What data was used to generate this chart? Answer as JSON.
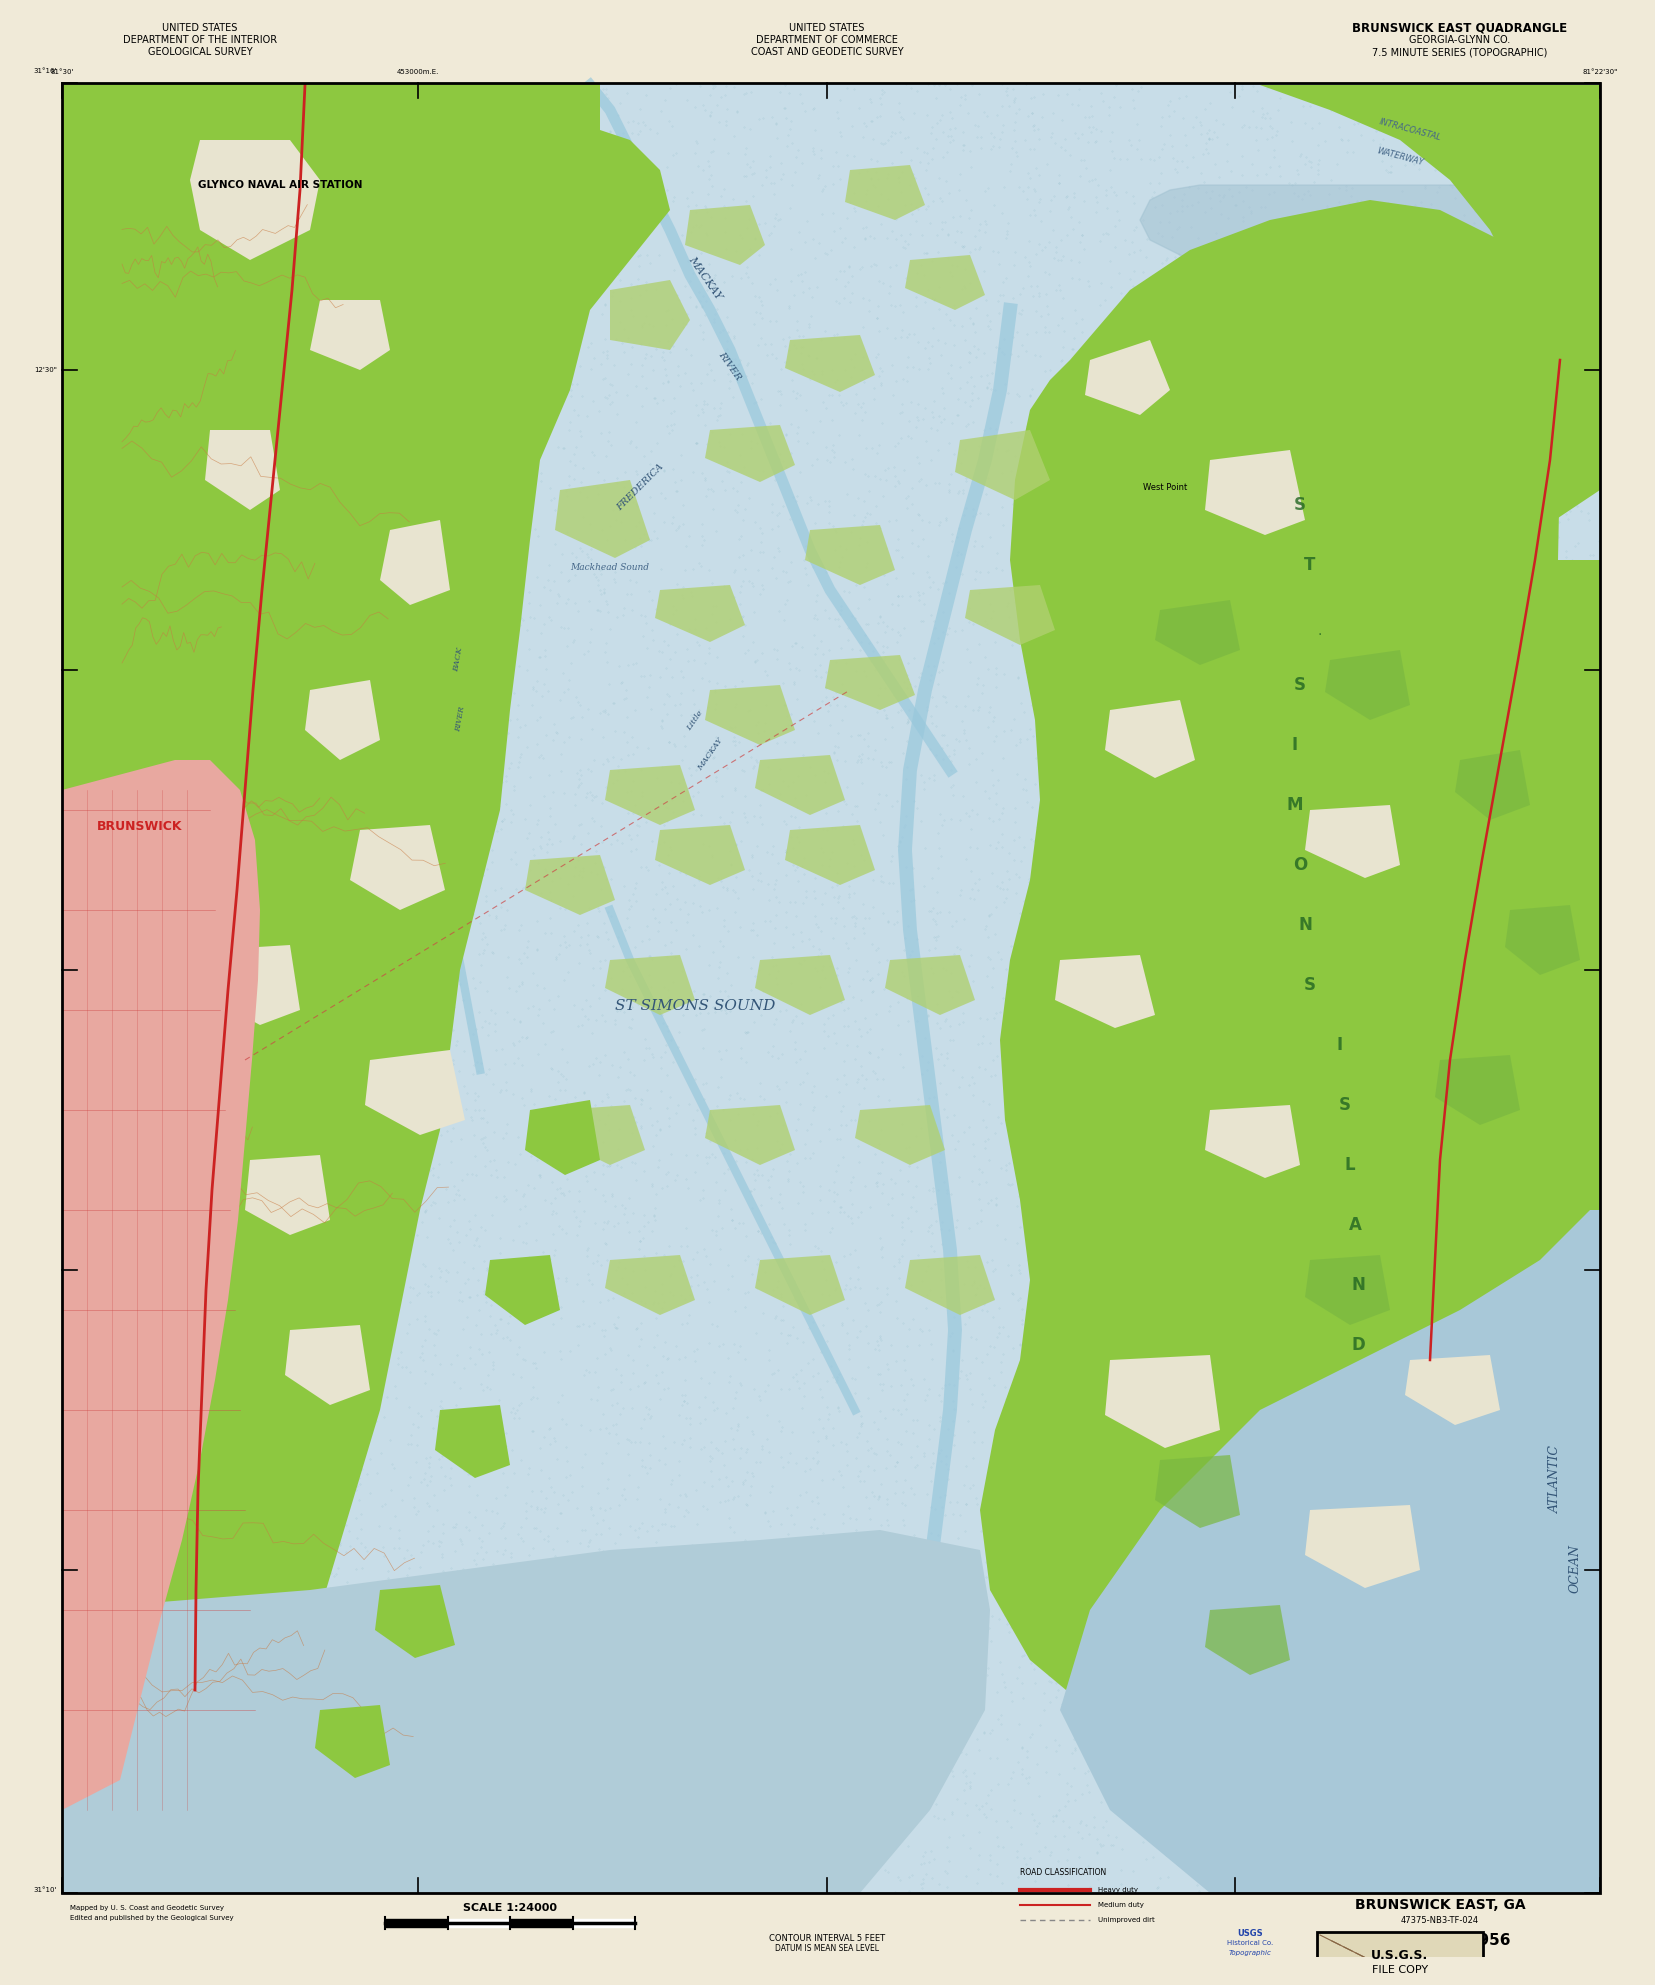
{
  "title_left_line1": "UNITED STATES",
  "title_left_line2": "DEPARTMENT OF THE INTERIOR",
  "title_left_line3": "GEOLOGICAL SURVEY",
  "title_center_line1": "UNITED STATES",
  "title_center_line2": "DEPARTMENT OF COMMERCE",
  "title_center_line3": "COAST AND GEODETIC SURVEY",
  "title_right_line1": "BRUNSWICK EAST QUADRANGLE",
  "title_right_line2": "GEORGIA-GLYNN CO.",
  "title_right_line3": "7.5 MINUTE SERIES (TOPOGRAPHIC)",
  "bottom_title": "BRUNSWICK EAST, GA",
  "year": "1956",
  "scale": "SCALE 1:24000",
  "bg_cream": "#f0ead8",
  "water_color": "#c8dde8",
  "water_stipple": "#7aaec0",
  "land_green": "#8dc840",
  "land_white": "#f0ede0",
  "urban_pink": "#e8a8a0",
  "urban_red_lines": "#cc3333",
  "marsh_green": "#a8cc60",
  "contour_brown": "#c87840",
  "road_red": "#cc2222",
  "border_black": "#000000",
  "text_blue": "#4488aa",
  "coord_label": "#000000"
}
